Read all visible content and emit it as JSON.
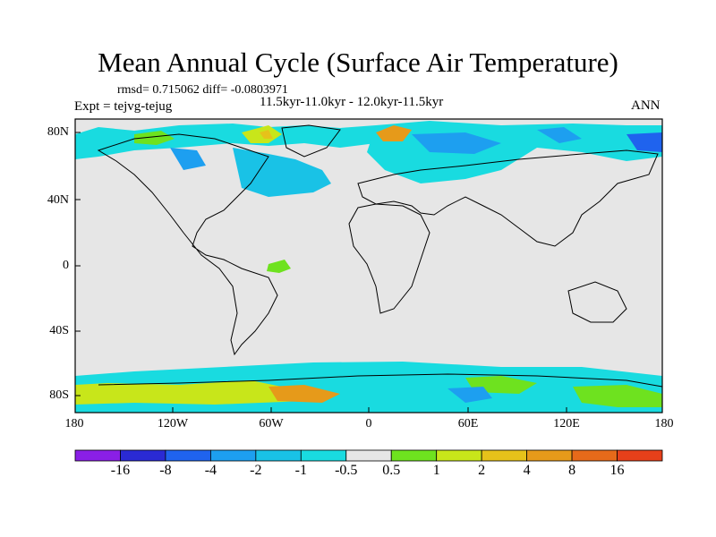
{
  "title": "Mean Annual Cycle (Surface Air Temperature)",
  "stats": "rmsd= 0.715062 diff= -0.0803971",
  "subtitle": "11.5kyr-11.0kyr - 12.0kyr-11.5kyr",
  "expt": "Expt = tejvg-tejug",
  "season": "ANN",
  "y_axis_labels": [
    "80N",
    "40N",
    "0",
    "40S",
    "80S"
  ],
  "x_axis_labels": [
    "180",
    "120W",
    "60W",
    "0",
    "60E",
    "120E",
    "180"
  ],
  "colorbar": {
    "labels": [
      "-16",
      "-8",
      "-4",
      "-2",
      "-1",
      "-0.5",
      "0.5",
      "1",
      "2",
      "4",
      "8",
      "16"
    ],
    "colors": [
      "#8a1fe6",
      "#2a2ad4",
      "#1f63ee",
      "#1d9ff0",
      "#19c2e6",
      "#19dbe0",
      "#e6e6e6",
      "#6ee21f",
      "#c8e61a",
      "#e6c21a",
      "#e69a1a",
      "#e66a1a",
      "#e6401a"
    ]
  },
  "map": {
    "background_color": "#e6e6e6",
    "coast_color": "#000000"
  }
}
